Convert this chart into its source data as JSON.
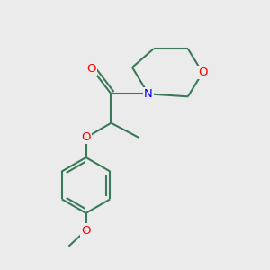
{
  "background_color": "#ebebeb",
  "bond_color": "#3a7a58",
  "atom_colors": {
    "O": "#ff0000",
    "N": "#0000ff",
    "C": "#000000"
  },
  "figsize": [
    3.0,
    3.0
  ],
  "dpi": 100,
  "bond_lw": 1.5,
  "font_size": 9.5
}
